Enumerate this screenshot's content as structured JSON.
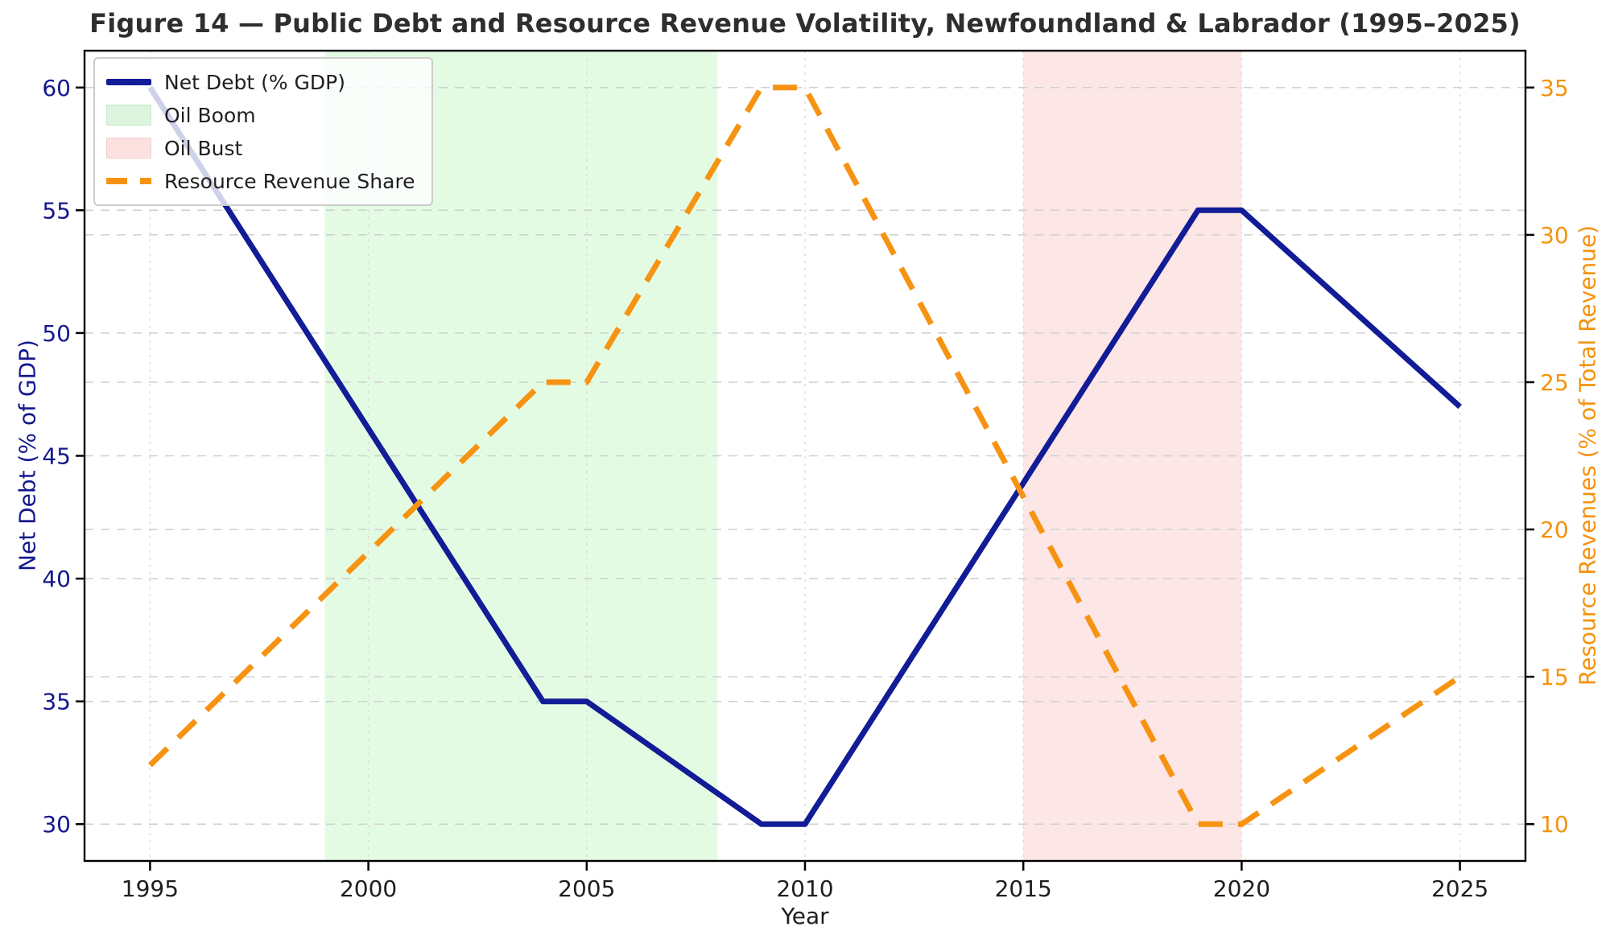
{
  "figure": {
    "kind": "dual-axis line chart with shaded periods"
  },
  "chart_data": {
    "type": "line",
    "title": "Figure 14 — Public Debt and Resource Revenue Volatility, Newfoundland & Labrador (1995–2025)",
    "xlabel": "Year",
    "ylabel_left": "Net Debt (% of GDP)",
    "ylabel_right": "Resource Revenues (% of Total Revenue)",
    "xlim": [
      1993.5,
      2026.5
    ],
    "ylim_left": [
      28.5,
      61.5
    ],
    "ylim_right": [
      8.75,
      36.25
    ],
    "x_ticks": [
      1995,
      2000,
      2005,
      2010,
      2015,
      2020,
      2025
    ],
    "y_ticks_left": [
      30,
      35,
      40,
      45,
      50,
      55,
      60
    ],
    "y_ticks_right": [
      10,
      15,
      20,
      25,
      30,
      35
    ],
    "grid": true,
    "legend_position": "upper-left",
    "series": [
      {
        "name": "Net Debt (% GDP)",
        "axis": "left",
        "line_style": "solid",
        "color": "#121c96",
        "x": [
          1995,
          2004,
          2005,
          2009,
          2010,
          2019,
          2020,
          2025
        ],
        "y": [
          60,
          35,
          35,
          30,
          30,
          55,
          55,
          47
        ]
      },
      {
        "name": "Resource Revenue Share",
        "axis": "right",
        "line_style": "dashed",
        "color": "#f79312",
        "x": [
          1995,
          2004,
          2005,
          2009,
          2010,
          2019,
          2020,
          2025
        ],
        "y": [
          12,
          25,
          25,
          35,
          35,
          10,
          10,
          15
        ]
      }
    ],
    "regions": [
      {
        "name": "Oil Boom",
        "x_start": 1999,
        "x_end": 2008,
        "fill": "#90ee90",
        "opacity": 0.25
      },
      {
        "name": "Oil Bust",
        "x_start": 2015,
        "x_end": 2020,
        "fill": "#f08080",
        "opacity": 0.2
      }
    ],
    "legend_items": [
      {
        "label": "Net Debt (% GDP)",
        "swatch": "line-solid",
        "color": "#121c96"
      },
      {
        "label": "Oil Boom",
        "swatch": "patch",
        "color": "#def4df",
        "border": "#c6e9c9"
      },
      {
        "label": "Oil Bust",
        "swatch": "patch",
        "color": "#fbe1e0",
        "border": "#f2cecc"
      },
      {
        "label": "Resource Revenue Share",
        "swatch": "line-dashed",
        "color": "#f79312"
      }
    ],
    "axis_colors": {
      "left_ticks": "#14188e",
      "right_ticks": "#f5920d",
      "x_ticks": "#1e1e1e",
      "spine": "#000000",
      "grid": "#cfcfcf",
      "grid_vertical": "#dcdcdc"
    }
  }
}
